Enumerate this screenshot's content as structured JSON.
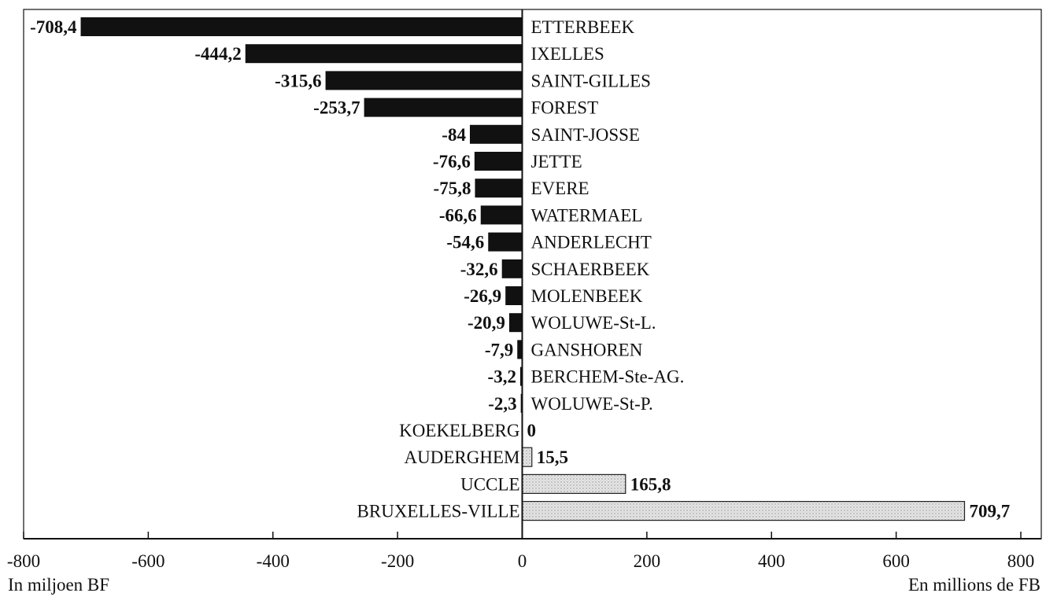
{
  "chart_data": {
    "type": "bar",
    "orientation": "horizontal",
    "categories": [
      "ETTERBEEK",
      "IXELLES",
      "SAINT-GILLES",
      "FOREST",
      "SAINT-JOSSE",
      "JETTE",
      "EVERE",
      "WATERMAEL",
      "ANDERLECHT",
      "SCHAERBEEK",
      "MOLENBEEK",
      "WOLUWE-St-L.",
      "GANSHOREN",
      "BERCHEM-Ste-AG.",
      "WOLUWE-St-P.",
      "KOEKELBERG",
      "AUDERGHEM",
      "UCCLE",
      "BRUXELLES-VILLE"
    ],
    "values": [
      -708.4,
      -444.2,
      -315.6,
      -253.7,
      -84,
      -76.6,
      -75.8,
      -66.6,
      -54.6,
      -32.6,
      -26.9,
      -20.9,
      -7.9,
      -3.2,
      -2.3,
      0,
      15.5,
      165.8,
      709.7
    ],
    "value_labels": [
      "-708,4",
      "-444,2",
      "-315,6",
      "-253,7",
      "-84",
      "-76,6",
      "-75,8",
      "-66,6",
      "-54,6",
      "-32,6",
      "-26,9",
      "-20,9",
      "-7,9",
      "-3,2",
      "-2,3",
      "0",
      "15,5",
      "165,8",
      "709,7"
    ],
    "xlim": [
      -800,
      800
    ],
    "x_ticks": [
      -800,
      -600,
      -400,
      -200,
      0,
      200,
      400,
      600,
      800
    ],
    "x_tick_labels": [
      "-800",
      "-600",
      "-400",
      "-200",
      "0",
      "200",
      "400",
      "600",
      "800"
    ],
    "xlabel_left": "In miljoen BF",
    "xlabel_right": "En millions de FB",
    "grid": false,
    "colors": {
      "negative_bar": "#111111",
      "positive_bar": "#dcdcdc",
      "positive_bar_stroke": "#222222",
      "axis": "#111111",
      "text": "#111111"
    }
  }
}
